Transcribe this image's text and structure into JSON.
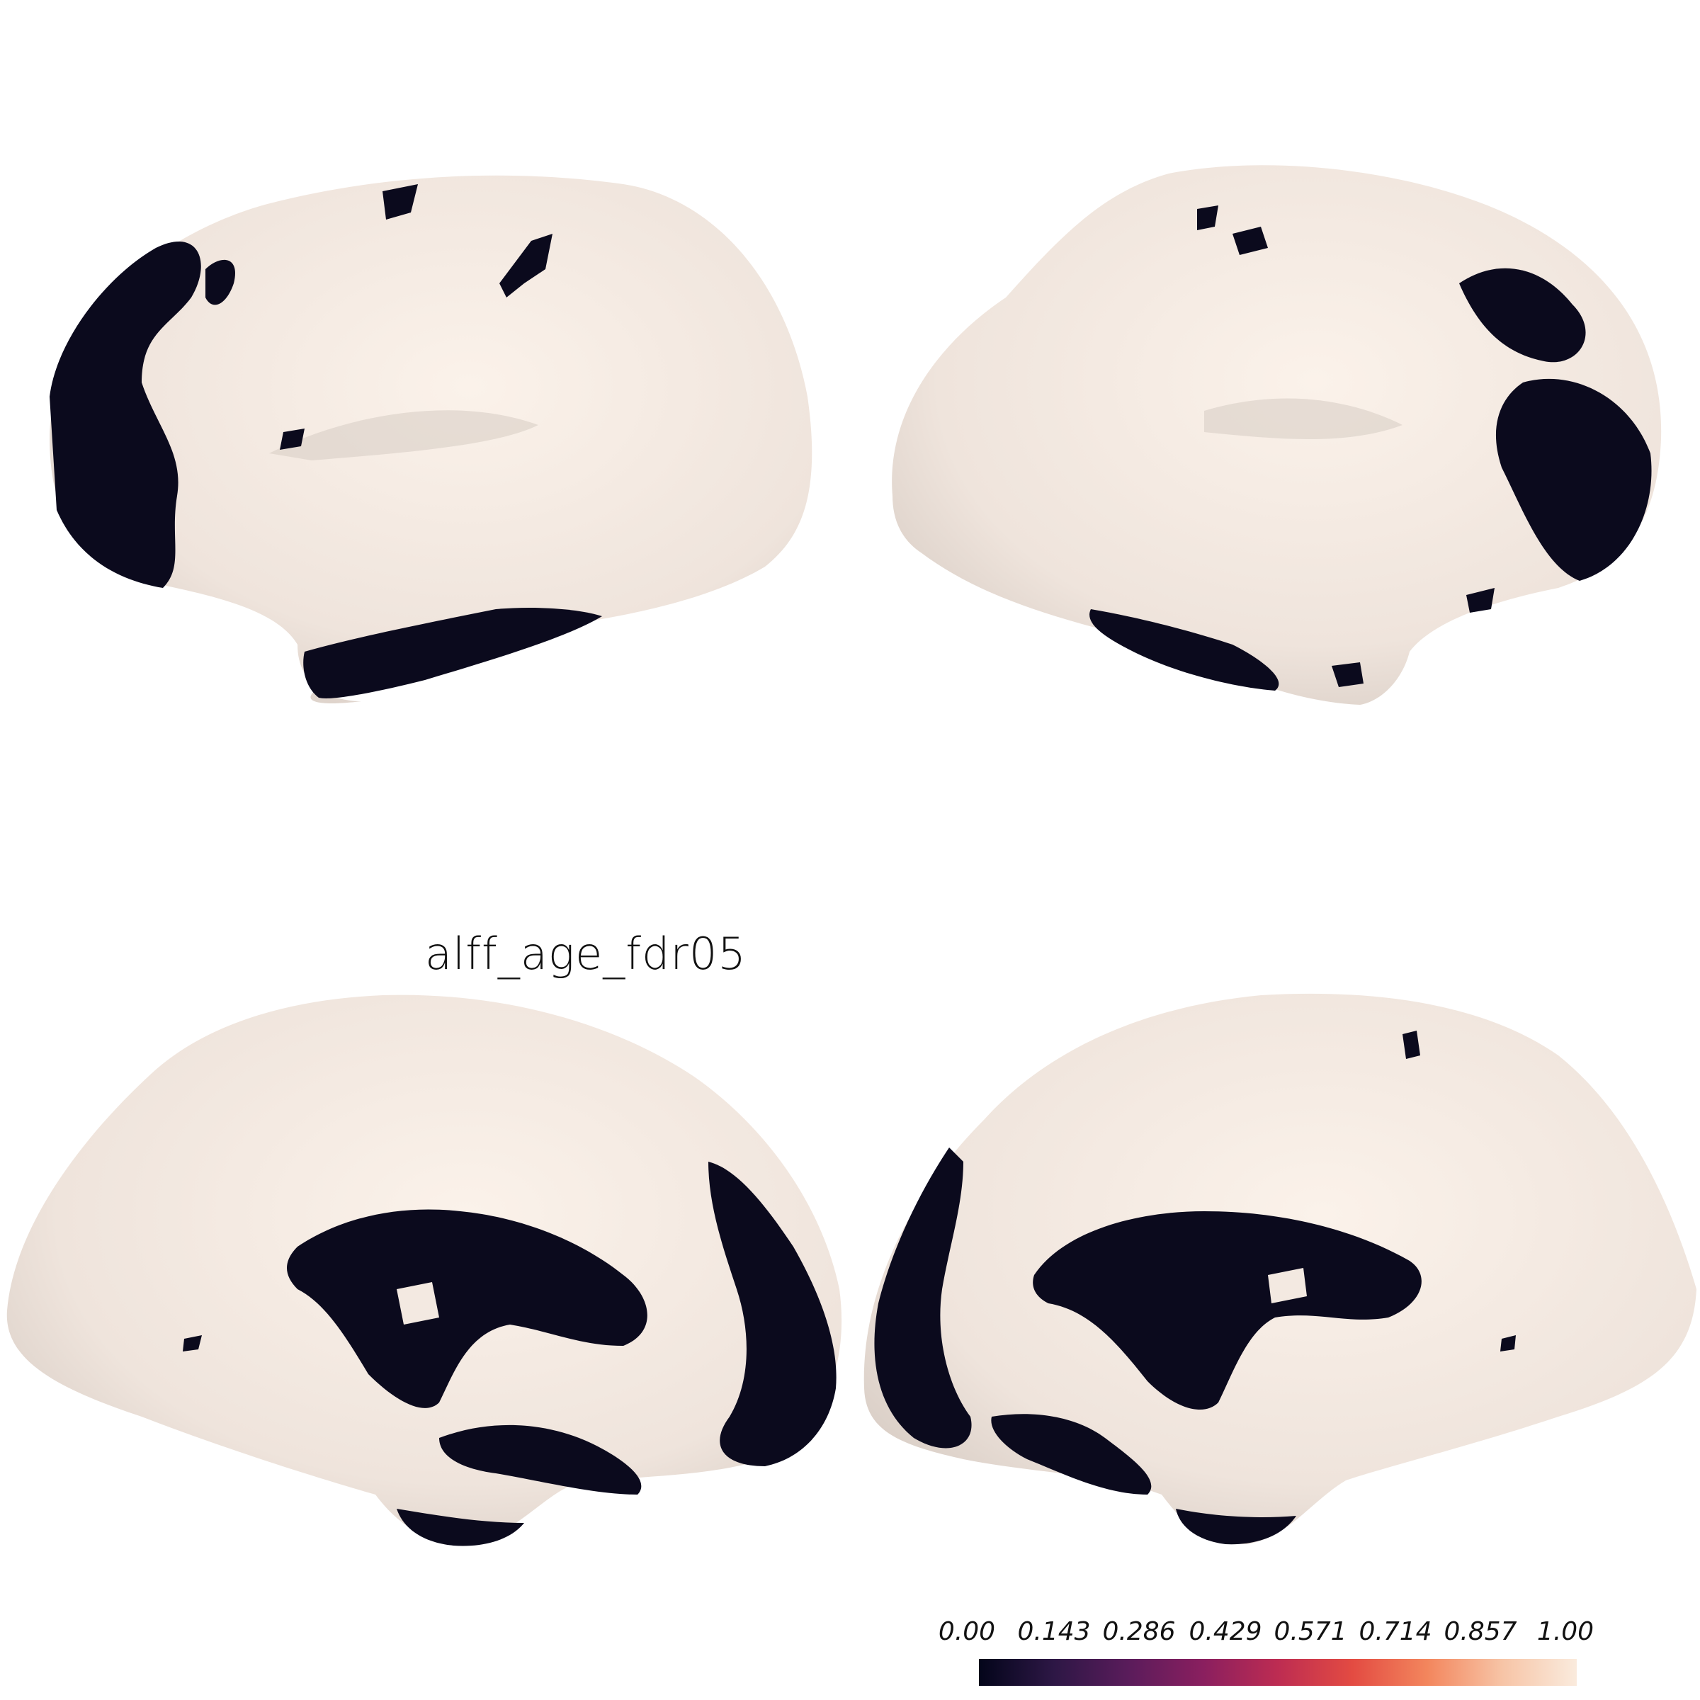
{
  "figure": {
    "title": "alff_age_fdr05",
    "colors": {
      "surface": "#f3e9e1",
      "surface_shadow": "#d9cec6",
      "cluster": "#0b0a1d",
      "background": "#ffffff"
    },
    "views": [
      "left-lateral",
      "right-lateral",
      "left-medial",
      "right-medial"
    ]
  },
  "colorbar": {
    "ticks": [
      "0.00",
      "0.143",
      "0.286",
      "0.429",
      "0.571",
      "0.714",
      "0.857",
      "1.00"
    ],
    "colormap": [
      "#03051a",
      "#2d1745",
      "#5a1c5b",
      "#8a1f5f",
      "#bd2c52",
      "#e34b42",
      "#f3865d",
      "#f7c4a6",
      "#faebdd"
    ]
  }
}
